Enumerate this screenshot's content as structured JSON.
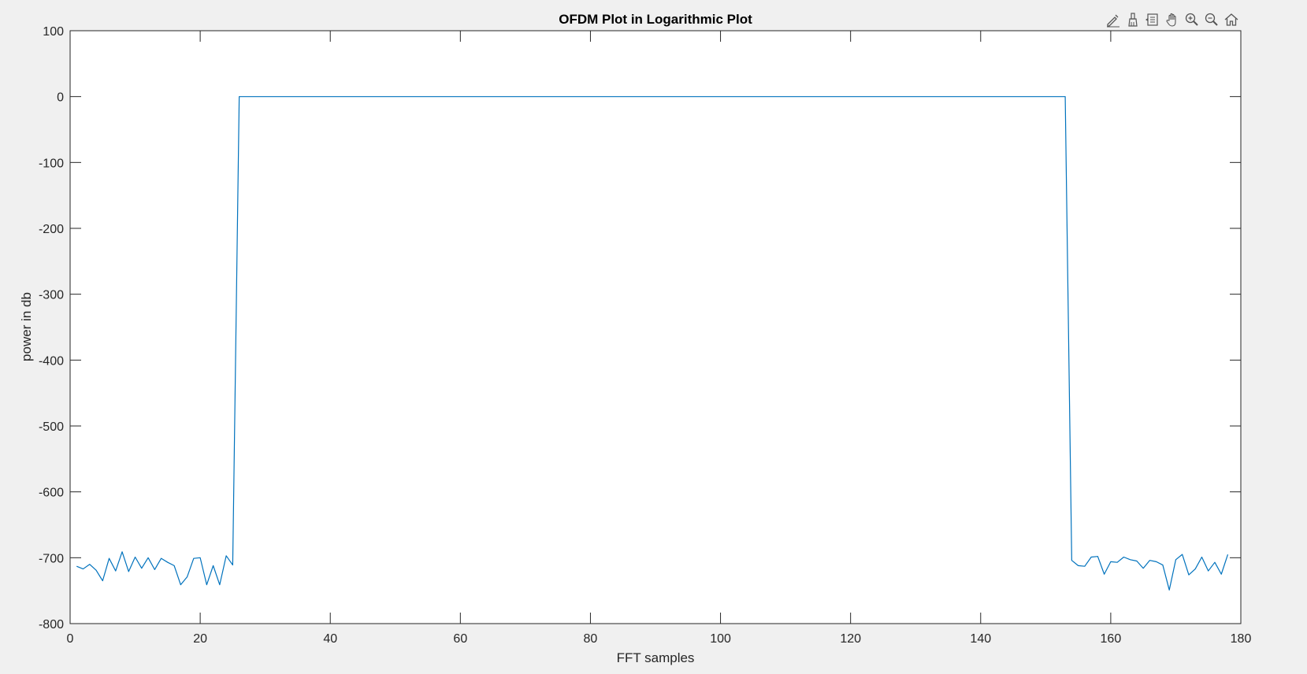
{
  "colors": {
    "figure_bg": "#f0f0f0",
    "axes_bg": "#ffffff",
    "line": "#0072bd",
    "axis": "#262626",
    "toolbar_icon": "#555555"
  },
  "toolbar": {
    "icons": [
      "edit-data-icon",
      "brush-icon",
      "data-tips-icon",
      "pan-icon",
      "zoom-in-icon",
      "zoom-out-icon",
      "home-icon"
    ]
  },
  "chart_data": {
    "type": "line",
    "title": "OFDM Plot in Logarithmic Plot",
    "xlabel": "FFT samples",
    "ylabel": "power in db",
    "xlim": [
      0,
      180
    ],
    "ylim": [
      -800,
      100
    ],
    "xticks": [
      0,
      20,
      40,
      60,
      80,
      100,
      120,
      140,
      160,
      180
    ],
    "yticks": [
      100,
      0,
      -100,
      -200,
      -300,
      -400,
      -500,
      -600,
      -700,
      -800
    ],
    "grid": false,
    "series": [
      {
        "x": [
          1,
          2,
          3,
          4,
          5,
          6,
          7,
          8,
          9,
          10,
          11,
          12,
          13,
          14,
          15,
          16,
          17,
          18,
          19,
          20,
          21,
          22,
          23,
          24,
          25,
          26,
          153,
          154,
          155,
          156,
          157,
          158,
          159,
          160,
          161,
          162,
          163,
          164,
          165,
          166,
          167,
          168,
          169,
          170,
          171,
          172,
          173,
          174,
          175,
          176,
          177,
          178
        ],
        "y": [
          -713,
          -717,
          -710,
          -719,
          -735,
          -701,
          -720,
          -691,
          -721,
          -699,
          -716,
          -700,
          -718,
          -701,
          -707,
          -712,
          -741,
          -729,
          -701,
          -700,
          -741,
          -712,
          -741,
          -697,
          -711,
          0,
          0,
          -704,
          -712,
          -713,
          -699,
          -698,
          -725,
          -706,
          -707,
          -699,
          -703,
          -705,
          -716,
          -704,
          -706,
          -711,
          -749,
          -703,
          -695,
          -726,
          -717,
          -699,
          -720,
          -707,
          -725,
          -695
        ]
      }
    ]
  }
}
